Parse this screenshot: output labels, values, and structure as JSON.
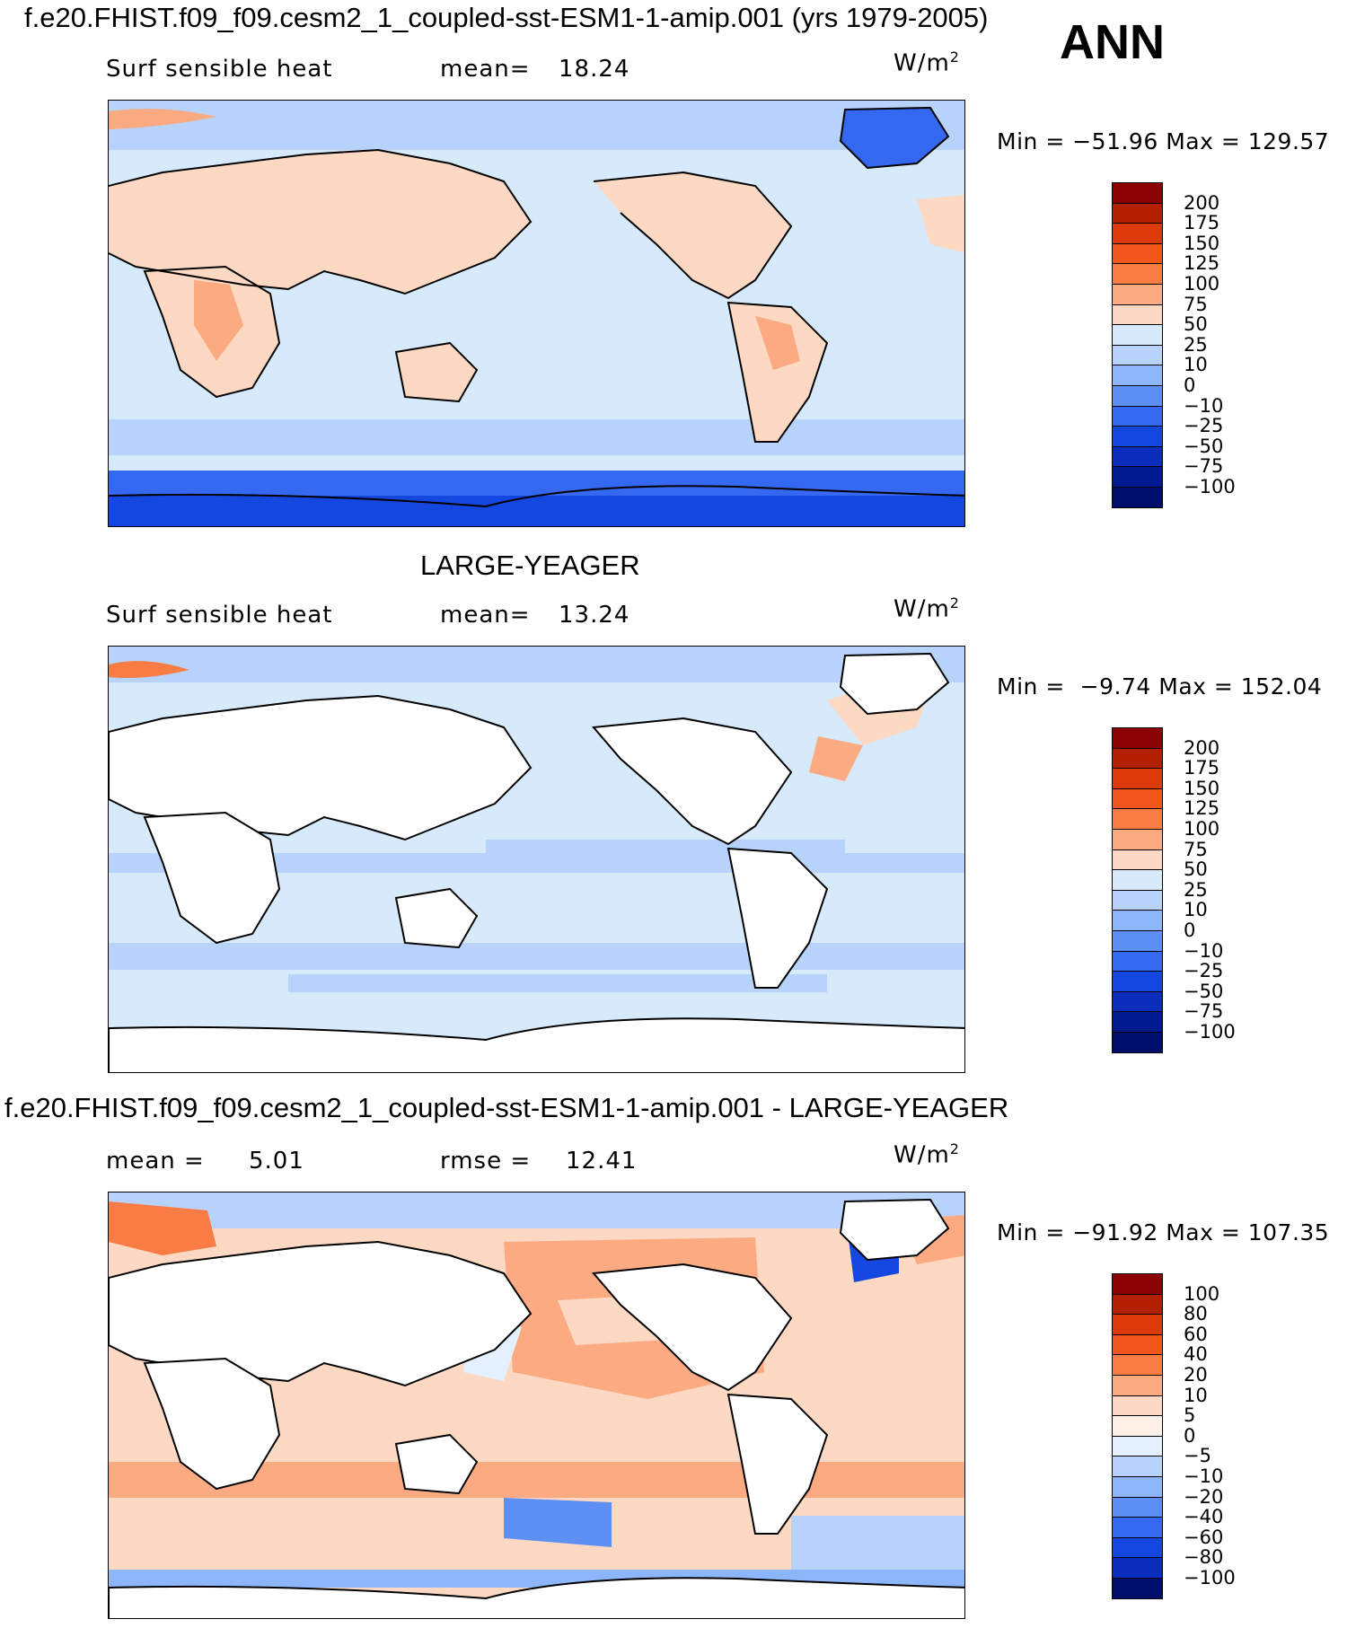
{
  "header": {
    "run_title": "f.e20.FHIST.f09_f09.cesm2_1_coupled-sst-ESM1-1-amip.001 (yrs 1979-2005)",
    "season": "ANN"
  },
  "panels": [
    {
      "id": "model",
      "title": "",
      "variable": "Surf sensible heat",
      "stat_label": "mean=",
      "stat_value": "18.24",
      "stat2_label": "",
      "stat2_value": "",
      "units_base": "W/m",
      "units_exp": "2",
      "min_label": "Min",
      "min_value": "−51.96",
      "max_label": "Max",
      "max_value": "129.57",
      "colorbar": {
        "labels": [
          "200",
          "175",
          "150",
          "125",
          "100",
          "75",
          "50",
          "25",
          "10",
          "0",
          "−10",
          "−25",
          "−50",
          "−75",
          "−100"
        ],
        "colors": [
          "#8b0000",
          "#b22000",
          "#dd3a0a",
          "#f2561e",
          "#f97c44",
          "#fbaa82",
          "#fdd8c2",
          "#d7eafb",
          "#b8d3fb",
          "#8db5f9",
          "#5e8ff3",
          "#3568f1",
          "#1446e0",
          "#0a2dbd",
          "#001a8f",
          "#000e6b"
        ]
      }
    },
    {
      "id": "obs",
      "title": "LARGE-YEAGER",
      "variable": "Surf sensible heat",
      "stat_label": "mean=",
      "stat_value": "13.24",
      "stat2_label": "",
      "stat2_value": "",
      "units_base": "W/m",
      "units_exp": "2",
      "min_label": "Min",
      "min_value": "−9.74",
      "max_label": "Max",
      "max_value": "152.04",
      "colorbar": {
        "labels": [
          "200",
          "175",
          "150",
          "125",
          "100",
          "75",
          "50",
          "25",
          "10",
          "0",
          "−10",
          "−25",
          "−50",
          "−75",
          "−100"
        ],
        "colors": [
          "#8b0000",
          "#b22000",
          "#dd3a0a",
          "#f2561e",
          "#f97c44",
          "#fbaa82",
          "#fdd8c2",
          "#d7eafb",
          "#b8d3fb",
          "#8db5f9",
          "#5e8ff3",
          "#3568f1",
          "#1446e0",
          "#0a2dbd",
          "#001a8f",
          "#000e6b"
        ]
      }
    },
    {
      "id": "diff",
      "title": "f.e20.FHIST.f09_f09.cesm2_1_coupled-sst-ESM1-1-amip.001 - LARGE-YEAGER",
      "variable": "",
      "stat_label": "mean =",
      "stat_value": "5.01",
      "stat2_label": "rmse =",
      "stat2_value": "12.41",
      "units_base": "W/m",
      "units_exp": "2",
      "min_label": "Min",
      "min_value": "−91.92",
      "max_label": "Max",
      "max_value": "107.35",
      "colorbar": {
        "labels": [
          "100",
          "80",
          "60",
          "40",
          "20",
          "10",
          "5",
          "0",
          "−5",
          "−10",
          "−20",
          "−40",
          "−60",
          "−80",
          "−100"
        ],
        "colors": [
          "#8b0000",
          "#b22000",
          "#dd3a0a",
          "#f2561e",
          "#f97c44",
          "#fbaa82",
          "#fdd8c2",
          "#fdf0e6",
          "#e4efff",
          "#b8d3fb",
          "#8db5f9",
          "#5e8ff3",
          "#3568f1",
          "#1446e0",
          "#0a2dbd",
          "#000e6b"
        ]
      }
    }
  ]
}
